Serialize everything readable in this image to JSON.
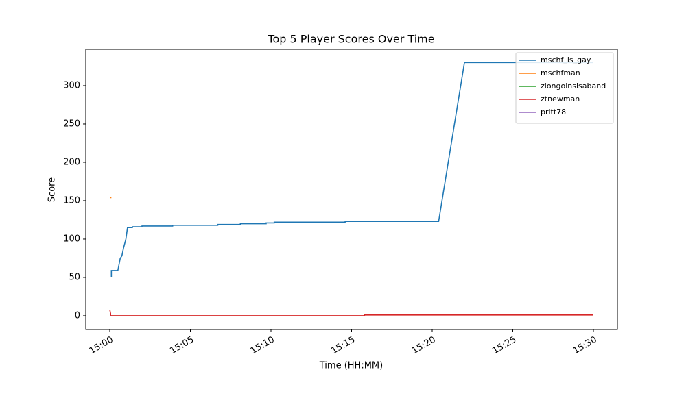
{
  "chart_data": {
    "type": "line",
    "title": "Top 5 Player Scores Over Time",
    "xlabel": "Time (HH:MM)",
    "ylabel": "Score",
    "xlim": [
      -1.49,
      31.49
    ],
    "ylim": [
      -17.9,
      347.3
    ],
    "xticks": [
      {
        "value": 0,
        "label": "15:00"
      },
      {
        "value": 5,
        "label": "15:05"
      },
      {
        "value": 10,
        "label": "15:10"
      },
      {
        "value": 15,
        "label": "15:15"
      },
      {
        "value": 20,
        "label": "15:20"
      },
      {
        "value": 25,
        "label": "15:25"
      },
      {
        "value": 30,
        "label": "15:30"
      }
    ],
    "yticks": [
      0,
      50,
      100,
      150,
      200,
      250,
      300
    ],
    "legend": "upper right",
    "series": [
      {
        "name": "mschf_is_gay",
        "color": "#1f77b4",
        "x": [
          0.1,
          0.1,
          0.5,
          0.65,
          0.75,
          0.85,
          1.0,
          1.1,
          1.4,
          1.4,
          2.0,
          2.0,
          3.9,
          3.9,
          6.7,
          6.7,
          8.1,
          8.1,
          9.7,
          9.7,
          10.2,
          10.2,
          14.6,
          14.6,
          20.4,
          22.0,
          30.0
        ],
        "values": [
          50,
          59,
          59,
          75,
          78,
          88,
          100,
          115,
          115,
          116,
          116,
          117,
          117,
          118,
          118,
          119,
          119,
          120,
          120,
          121,
          121,
          122,
          122,
          123,
          123,
          330,
          330
        ]
      },
      {
        "name": "mschfman",
        "color": "#ff7f0e",
        "x": [
          0,
          0.1
        ],
        "values": [
          154,
          154
        ]
      },
      {
        "name": "ziongoinsisaband",
        "color": "#2ca02c",
        "x": [
          0,
          0.05
        ],
        "values": [
          0,
          0
        ]
      },
      {
        "name": "ztnewman",
        "color": "#d62728",
        "x": [
          0,
          0.05,
          0.05,
          15.8,
          15.8,
          30.0
        ],
        "values": [
          8,
          3,
          0,
          0,
          1,
          1
        ]
      },
      {
        "name": "pritt78",
        "color": "#9467bd",
        "x": [
          0,
          0.05
        ],
        "values": [
          0,
          0
        ]
      }
    ]
  }
}
